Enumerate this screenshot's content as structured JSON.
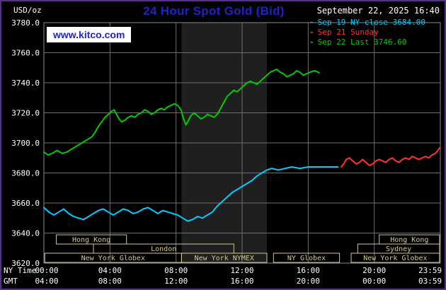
{
  "header": {
    "units_label": "USD/oz",
    "title": "24 Hour Spot Gold (Bid)",
    "datetime": "September 22, 2025 16:40",
    "watermark": "www.kitco.com"
  },
  "colors": {
    "background": "#000000",
    "border": "#5c2d91",
    "title_blue": "#2222cc",
    "text": "#ffffff",
    "grid": "#6f6f6f",
    "frame": "#8a8a8a",
    "band": "#1f1f1f",
    "session": "#d2c88e",
    "sep19": "#00ccff",
    "sep21": "#ff3333",
    "sep22": "#00cc00"
  },
  "legend": [
    {
      "key": "sep19",
      "label": "Sep 19 NY close 3684.00"
    },
    {
      "key": "sep21",
      "label": "Sep 21 Sunday"
    },
    {
      "key": "sep22",
      "label": "Sep 22 Last 3746.60"
    }
  ],
  "chart_data": {
    "type": "line",
    "title": "24 Hour Spot Gold (Bid)",
    "ylabel": "USD/oz",
    "grid": true,
    "legend_position": "top-right",
    "y_axis": {
      "range": [
        3620,
        3780
      ],
      "tick_step": 20,
      "ticks": [
        {
          "v": 3620,
          "label": "3620.0"
        },
        {
          "v": 3640,
          "label": "3640.0"
        },
        {
          "v": 3660,
          "label": "3660.0"
        },
        {
          "v": 3680,
          "label": "3680.0"
        },
        {
          "v": 3700,
          "label": "3700.0"
        },
        {
          "v": 3720,
          "label": "3720.0"
        },
        {
          "v": 3740,
          "label": "3740.0"
        },
        {
          "v": 3760,
          "label": "3760.0"
        },
        {
          "v": 3780,
          "label": "3780.0"
        }
      ]
    },
    "x_axis": {
      "caption_ny": "NY Time",
      "caption_gmt": "GMT",
      "range_hours": [
        0,
        24
      ],
      "ticks": [
        {
          "h": 0,
          "ny": "00:00",
          "gmt": "04:00"
        },
        {
          "h": 4,
          "ny": "04:00",
          "gmt": "08:00"
        },
        {
          "h": 8,
          "ny": "08:00",
          "gmt": "12:00"
        },
        {
          "h": 12,
          "ny": "12:00",
          "gmt": "16:00"
        },
        {
          "h": 16,
          "ny": "16:00",
          "gmt": "20:00"
        },
        {
          "h": 20,
          "ny": "20:00",
          "gmt": "00:00"
        },
        {
          "h": 23.983,
          "ny": "23:59",
          "gmt": "03:59"
        }
      ]
    },
    "grid_hours": [
      4,
      8,
      12,
      16,
      20
    ],
    "nymex_band_hours": [
      8.33,
      13.5
    ],
    "sessions": [
      {
        "row": 0,
        "label": "Hong Kong",
        "start": 0.75,
        "end": 5.0
      },
      {
        "row": 0,
        "label": "Hong Kong",
        "start": 20.3,
        "end": 23.95
      },
      {
        "row": 1,
        "label": "London",
        "start": 3.0,
        "end": 11.5
      },
      {
        "row": 1,
        "label": "Sydney",
        "start": 19.0,
        "end": 23.95
      },
      {
        "row": 2,
        "label": "New York Globex",
        "start": 0.05,
        "end": 8.33
      },
      {
        "row": 2,
        "label": "New York NYMEX",
        "start": 8.33,
        "end": 13.5
      },
      {
        "row": 2,
        "label": "NY Globex",
        "start": 13.9,
        "end": 17.9
      },
      {
        "row": 2,
        "label": "New York Globex",
        "start": 18.6,
        "end": 23.95
      }
    ],
    "series": [
      {
        "key": "sep19",
        "name": "Sep 19 NY close",
        "close": 3684.0,
        "points": [
          [
            0,
            3657
          ],
          [
            0.3,
            3654
          ],
          [
            0.6,
            3652
          ],
          [
            0.9,
            3654
          ],
          [
            1.2,
            3656
          ],
          [
            1.5,
            3653
          ],
          [
            1.8,
            3651
          ],
          [
            2.1,
            3650
          ],
          [
            2.4,
            3649
          ],
          [
            2.7,
            3651
          ],
          [
            3,
            3653
          ],
          [
            3.3,
            3655
          ],
          [
            3.6,
            3656
          ],
          [
            3.9,
            3654
          ],
          [
            4.2,
            3652
          ],
          [
            4.5,
            3654
          ],
          [
            4.8,
            3656
          ],
          [
            5.1,
            3655
          ],
          [
            5.4,
            3653
          ],
          [
            5.7,
            3654
          ],
          [
            6,
            3656
          ],
          [
            6.3,
            3657
          ],
          [
            6.6,
            3655
          ],
          [
            6.9,
            3653
          ],
          [
            7.2,
            3655
          ],
          [
            7.5,
            3654
          ],
          [
            7.8,
            3653
          ],
          [
            8.1,
            3652
          ],
          [
            8.4,
            3650
          ],
          [
            8.7,
            3648
          ],
          [
            9,
            3649
          ],
          [
            9.3,
            3651
          ],
          [
            9.6,
            3650
          ],
          [
            9.9,
            3652
          ],
          [
            10.2,
            3654
          ],
          [
            10.5,
            3658
          ],
          [
            10.8,
            3661
          ],
          [
            11.1,
            3664
          ],
          [
            11.4,
            3667
          ],
          [
            11.7,
            3669
          ],
          [
            12,
            3671
          ],
          [
            12.3,
            3673
          ],
          [
            12.6,
            3675
          ],
          [
            12.9,
            3678
          ],
          [
            13.2,
            3680
          ],
          [
            13.5,
            3682
          ],
          [
            13.8,
            3683
          ],
          [
            14.2,
            3682
          ],
          [
            14.6,
            3683
          ],
          [
            15,
            3684
          ],
          [
            15.5,
            3683
          ],
          [
            16,
            3684
          ],
          [
            16.5,
            3684
          ],
          [
            17,
            3684
          ],
          [
            17.8,
            3684
          ]
        ]
      },
      {
        "key": "sep21",
        "name": "Sep 21 Sunday",
        "close": null,
        "points": [
          [
            18,
            3684
          ],
          [
            18.15,
            3686
          ],
          [
            18.3,
            3689
          ],
          [
            18.5,
            3690
          ],
          [
            18.7,
            3688
          ],
          [
            18.9,
            3686
          ],
          [
            19.1,
            3687
          ],
          [
            19.3,
            3689
          ],
          [
            19.5,
            3687
          ],
          [
            19.7,
            3685
          ],
          [
            19.9,
            3686
          ],
          [
            20.1,
            3688
          ],
          [
            20.3,
            3689
          ],
          [
            20.5,
            3688
          ],
          [
            20.7,
            3687
          ],
          [
            20.9,
            3689
          ],
          [
            21.1,
            3690
          ],
          [
            21.3,
            3688
          ],
          [
            21.5,
            3687
          ],
          [
            21.7,
            3689
          ],
          [
            21.9,
            3690
          ],
          [
            22.1,
            3689
          ],
          [
            22.3,
            3691
          ],
          [
            22.5,
            3690
          ],
          [
            22.7,
            3689
          ],
          [
            22.9,
            3690
          ],
          [
            23.1,
            3691
          ],
          [
            23.3,
            3690
          ],
          [
            23.5,
            3692
          ],
          [
            23.7,
            3693
          ],
          [
            23.85,
            3695
          ],
          [
            23.98,
            3697
          ]
        ]
      },
      {
        "key": "sep22",
        "name": "Sep 22 Last",
        "close": 3746.6,
        "points": [
          [
            0,
            3694
          ],
          [
            0.25,
            3692
          ],
          [
            0.5,
            3693
          ],
          [
            0.8,
            3695
          ],
          [
            1.1,
            3693
          ],
          [
            1.4,
            3694
          ],
          [
            1.7,
            3696
          ],
          [
            2,
            3698
          ],
          [
            2.3,
            3700
          ],
          [
            2.6,
            3702
          ],
          [
            2.9,
            3704
          ],
          [
            3.1,
            3707
          ],
          [
            3.3,
            3711
          ],
          [
            3.5,
            3714
          ],
          [
            3.7,
            3717
          ],
          [
            3.9,
            3719
          ],
          [
            4.1,
            3721
          ],
          [
            4.25,
            3722
          ],
          [
            4.4,
            3719
          ],
          [
            4.55,
            3716
          ],
          [
            4.7,
            3714
          ],
          [
            4.9,
            3715
          ],
          [
            5.1,
            3717
          ],
          [
            5.3,
            3718
          ],
          [
            5.5,
            3717
          ],
          [
            5.7,
            3719
          ],
          [
            5.9,
            3720
          ],
          [
            6.1,
            3722
          ],
          [
            6.3,
            3721
          ],
          [
            6.5,
            3719
          ],
          [
            6.7,
            3720
          ],
          [
            6.9,
            3722
          ],
          [
            7.1,
            3723
          ],
          [
            7.3,
            3722
          ],
          [
            7.5,
            3724
          ],
          [
            7.7,
            3725
          ],
          [
            7.9,
            3726
          ],
          [
            8.1,
            3725
          ],
          [
            8.3,
            3722
          ],
          [
            8.45,
            3716
          ],
          [
            8.6,
            3712
          ],
          [
            8.75,
            3715
          ],
          [
            8.9,
            3718
          ],
          [
            9.1,
            3720
          ],
          [
            9.3,
            3718
          ],
          [
            9.5,
            3716
          ],
          [
            9.7,
            3717
          ],
          [
            9.9,
            3719
          ],
          [
            10.1,
            3718
          ],
          [
            10.3,
            3717
          ],
          [
            10.5,
            3719
          ],
          [
            10.7,
            3723
          ],
          [
            10.9,
            3727
          ],
          [
            11.1,
            3731
          ],
          [
            11.3,
            3733
          ],
          [
            11.5,
            3735
          ],
          [
            11.7,
            3734
          ],
          [
            11.9,
            3736
          ],
          [
            12.1,
            3738
          ],
          [
            12.3,
            3740
          ],
          [
            12.5,
            3741
          ],
          [
            12.7,
            3740
          ],
          [
            12.9,
            3739
          ],
          [
            13.1,
            3741
          ],
          [
            13.3,
            3743
          ],
          [
            13.5,
            3745
          ],
          [
            13.7,
            3747
          ],
          [
            13.9,
            3748
          ],
          [
            14.1,
            3749
          ],
          [
            14.3,
            3747
          ],
          [
            14.5,
            3746
          ],
          [
            14.7,
            3744
          ],
          [
            14.9,
            3745
          ],
          [
            15.1,
            3746
          ],
          [
            15.3,
            3748
          ],
          [
            15.5,
            3747
          ],
          [
            15.7,
            3745
          ],
          [
            15.9,
            3746
          ],
          [
            16.1,
            3747
          ],
          [
            16.4,
            3748
          ],
          [
            16.67,
            3746.6
          ]
        ]
      }
    ]
  }
}
